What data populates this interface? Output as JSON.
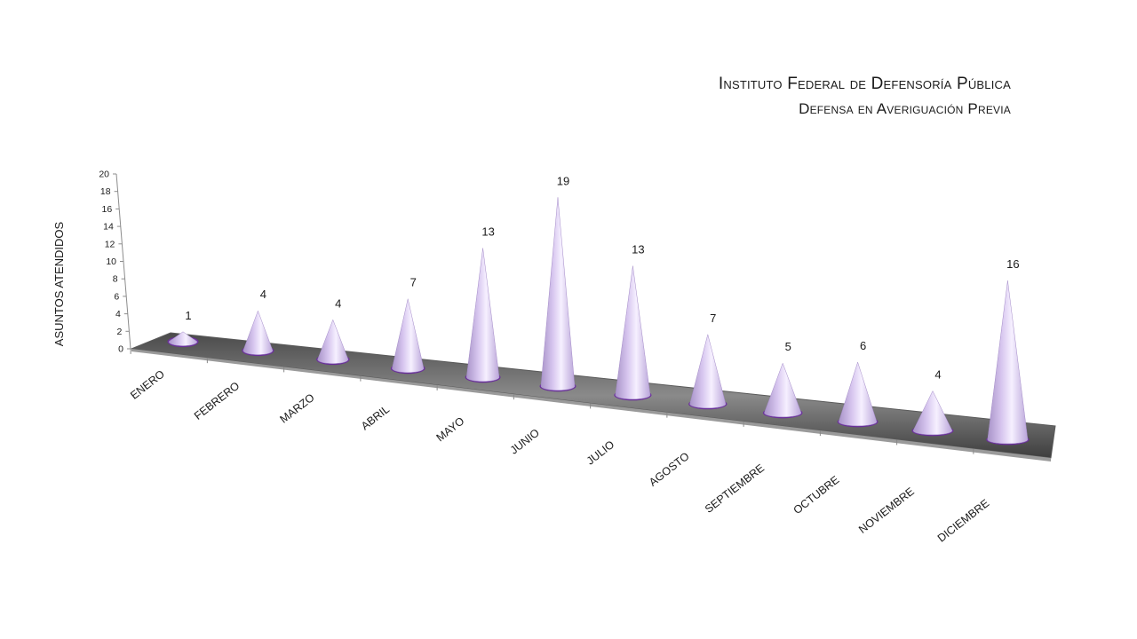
{
  "chart_data": {
    "type": "bar",
    "shape": "cone-3d",
    "title": "Instituto Federal de Defensoría Pública",
    "subtitle": "Defensa en Averiguación Previa",
    "ylabel": "ASUNTOS ATENDIDOS",
    "xlabel": "",
    "ylim": [
      0,
      20
    ],
    "yticks": [
      0,
      2,
      4,
      6,
      8,
      10,
      12,
      14,
      16,
      18,
      20
    ],
    "categories": [
      "ENERO",
      "FEBRERO",
      "MARZO",
      "ABRIL",
      "MAYO",
      "JUNIO",
      "JULIO",
      "AGOSTO",
      "SEPTIEMBRE",
      "OCTUBRE",
      "NOVIEMBRE",
      "DICIEMBRE"
    ],
    "values": [
      1,
      4,
      4,
      7,
      13,
      19,
      13,
      7,
      5,
      6,
      4,
      16
    ],
    "data_labels": true,
    "grid": false,
    "colors": {
      "cone": "#d9c8f0",
      "cone_rim": "#7a3fa8",
      "floor": "#6e6e6e",
      "axis": "#8c8c8c",
      "text": "#1a1a1a"
    }
  }
}
